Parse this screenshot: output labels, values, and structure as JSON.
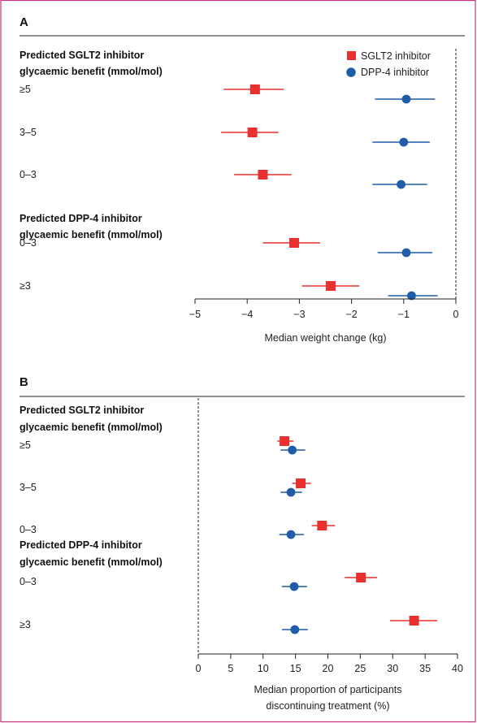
{
  "colors": {
    "sglt2": "#e8302e",
    "dpp4": "#1f5da8",
    "frame": "#c8327a",
    "axis": "#222222"
  },
  "legend": {
    "sglt2_label": "SGLT2 inhibitor",
    "dpp4_label": "DPP-4 inhibitor",
    "placement": "top-right of panel A"
  },
  "chart_data": [
    {
      "panel": "A",
      "type": "forest",
      "xlabel": "Median weight change (kg)",
      "xlim": [
        -5,
        0
      ],
      "xticks": [
        -5,
        -4,
        -3,
        -2,
        -1,
        0
      ],
      "xtick_labels": [
        "−5",
        "−4",
        "−3",
        "−2",
        "−1",
        "0"
      ],
      "reference_line": 0,
      "groups": [
        {
          "title_lines": [
            "Predicted SGLT2 inhibitor",
            "glycaemic benefit (mmol/mol)"
          ],
          "rows": [
            {
              "label": "≥5",
              "sglt2": {
                "estimate": -3.85,
                "low": -4.45,
                "high": -3.3
              },
              "dpp4": {
                "estimate": -0.95,
                "low": -1.55,
                "high": -0.4
              }
            },
            {
              "label": "3–5",
              "sglt2": {
                "estimate": -3.9,
                "low": -4.5,
                "high": -3.4
              },
              "dpp4": {
                "estimate": -1.0,
                "low": -1.6,
                "high": -0.5
              }
            },
            {
              "label": "0–3",
              "sglt2": {
                "estimate": -3.7,
                "low": -4.25,
                "high": -3.15
              },
              "dpp4": {
                "estimate": -1.05,
                "low": -1.6,
                "high": -0.55
              }
            }
          ]
        },
        {
          "title_lines": [
            "Predicted DPP-4 inhibitor",
            "glycaemic benefit (mmol/mol)"
          ],
          "rows": [
            {
              "label": "0–3",
              "sglt2": {
                "estimate": -3.1,
                "low": -3.7,
                "high": -2.6
              },
              "dpp4": {
                "estimate": -0.95,
                "low": -1.5,
                "high": -0.45
              }
            },
            {
              "label": "≥3",
              "sglt2": {
                "estimate": -2.4,
                "low": -2.95,
                "high": -1.85
              },
              "dpp4": {
                "estimate": -0.85,
                "low": -1.3,
                "high": -0.35
              }
            }
          ]
        }
      ]
    },
    {
      "panel": "B",
      "type": "forest",
      "xlabel_lines": [
        "Median proportion of participants",
        "discontinuing treatment (%)"
      ],
      "xlim": [
        0,
        40
      ],
      "xticks": [
        0,
        5,
        10,
        15,
        20,
        25,
        30,
        35,
        40
      ],
      "xtick_labels": [
        "0",
        "5",
        "10",
        "15",
        "20",
        "25",
        "30",
        "35",
        "40"
      ],
      "reference_line": 0,
      "groups": [
        {
          "title_lines": [
            "Predicted SGLT2 inhibitor",
            "glycaemic benefit (mmol/mol)"
          ],
          "rows": [
            {
              "label": "≥5",
              "sglt2": {
                "estimate": 13.3,
                "low": 12.2,
                "high": 14.7
              },
              "dpp4": {
                "estimate": 14.5,
                "low": 12.7,
                "high": 16.5
              }
            },
            {
              "label": "3–5",
              "sglt2": {
                "estimate": 15.8,
                "low": 14.5,
                "high": 17.4
              },
              "dpp4": {
                "estimate": 14.3,
                "low": 12.7,
                "high": 16.0
              }
            },
            {
              "label": "0–3",
              "sglt2": {
                "estimate": 19.1,
                "low": 17.5,
                "high": 21.1
              },
              "dpp4": {
                "estimate": 14.3,
                "low": 12.5,
                "high": 16.3
              }
            }
          ]
        },
        {
          "title_lines": [
            "Predicted DPP-4 inhibitor",
            "glycaemic benefit (mmol/mol)"
          ],
          "rows": [
            {
              "label": "0–3",
              "sglt2": {
                "estimate": 25.1,
                "low": 22.6,
                "high": 27.6
              },
              "dpp4": {
                "estimate": 14.8,
                "low": 12.9,
                "high": 16.8
              }
            },
            {
              "label": "≥3",
              "sglt2": {
                "estimate": 33.3,
                "low": 29.6,
                "high": 36.9
              },
              "dpp4": {
                "estimate": 14.9,
                "low": 12.9,
                "high": 16.9
              }
            }
          ]
        }
      ]
    }
  ]
}
